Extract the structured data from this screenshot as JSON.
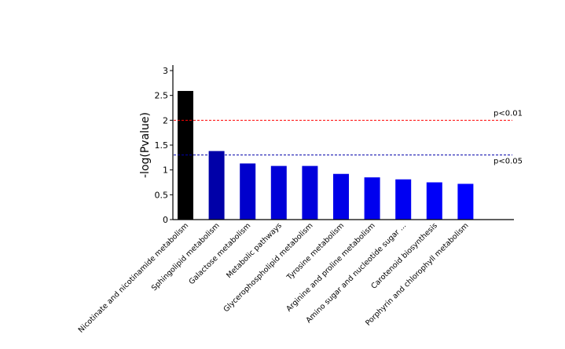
{
  "chart_data": {
    "type": "bar",
    "title": "",
    "xlabel": "",
    "ylabel": "-log(Pvalue)",
    "ylim": [
      0,
      3
    ],
    "yticks": [
      {
        "value": 0,
        "label": "0"
      },
      {
        "value": 0.5,
        "label": "0.5"
      },
      {
        "value": 1,
        "label": "1"
      },
      {
        "value": 1.5,
        "label": "1.5"
      },
      {
        "value": 2,
        "label": "2"
      },
      {
        "value": 2.5,
        "label": "2.5"
      },
      {
        "value": 3,
        "label": "3"
      }
    ],
    "categories": [
      "Nicotinate and nicotinamide metabolism",
      "Sphingolipid metabolism",
      "Galactose metabolism",
      "Metabolic pathways",
      "Glycerophospholipid metabolism",
      "Tyrosine metabolism",
      "Arginine and proline metabolism",
      "Amino sugar and nucleotide sugar ...",
      "Carotenoid biosynthesis",
      "Porphyrin and chlorophyll metabolism"
    ],
    "values": [
      2.59,
      1.38,
      1.13,
      1.08,
      1.08,
      0.92,
      0.85,
      0.81,
      0.75,
      0.72
    ],
    "bar_colors": [
      "#000000",
      "#0000a8",
      "#0000cc",
      "#0000d8",
      "#0000dc",
      "#0000e8",
      "#0000ee",
      "#0000f2",
      "#0000f8",
      "#0000ff"
    ],
    "reference_lines": [
      {
        "label": "p<0.01",
        "value": 2,
        "color": "#ff0000"
      },
      {
        "label": "p<0.05",
        "value": 1.3,
        "color": "#0000aa"
      }
    ],
    "grid": false,
    "legend": "none"
  }
}
